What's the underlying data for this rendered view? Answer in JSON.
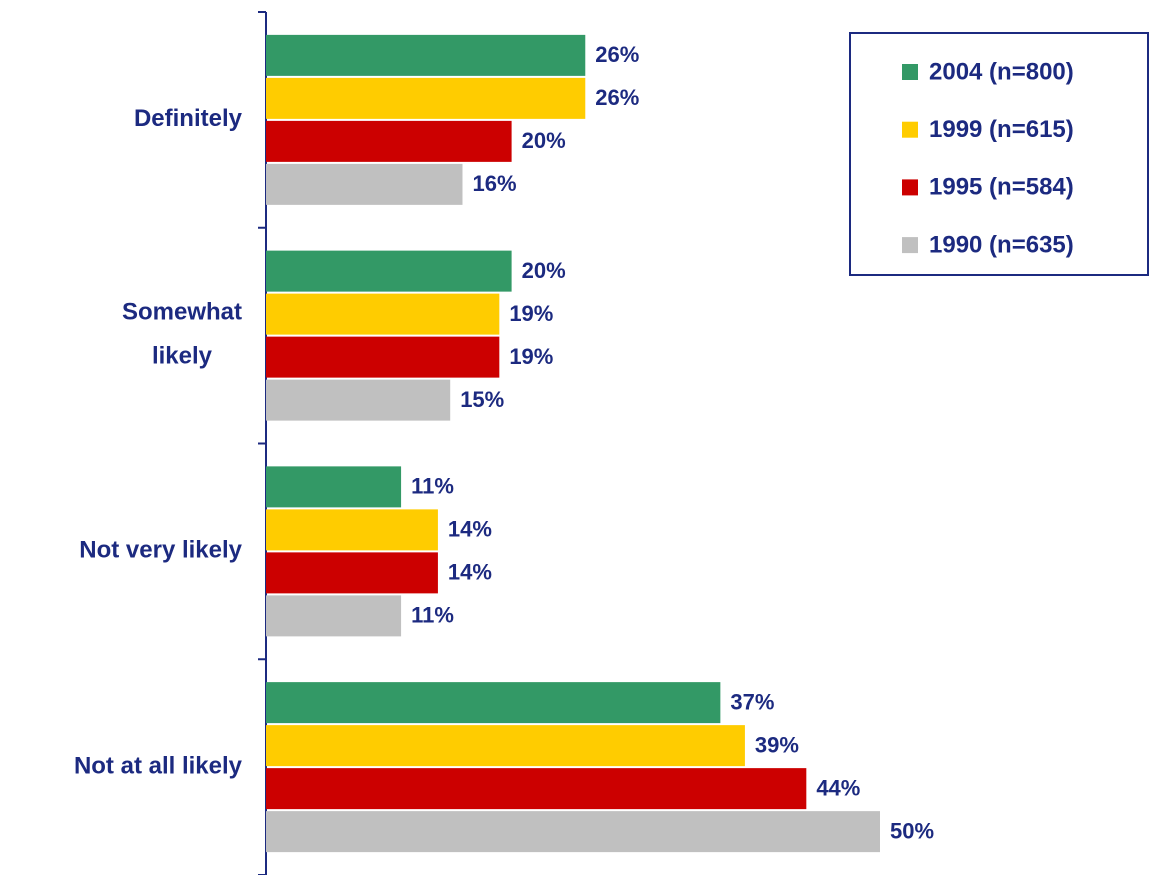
{
  "chart_data": {
    "type": "hbar",
    "categories": [
      "Definitely",
      "Somewhat likely",
      "Not very likely",
      "Not at all likely"
    ],
    "series": [
      {
        "name": "2004 (n=800)",
        "color": "#339966",
        "values": [
          26,
          20,
          11,
          37
        ],
        "value_labels": [
          "26%",
          "20%",
          "11%",
          "37%"
        ]
      },
      {
        "name": "1999 (n=615)",
        "color": "#ffcc00",
        "values": [
          26,
          19,
          14,
          39
        ],
        "value_labels": [
          "26%",
          "19%",
          "14%",
          "39%"
        ]
      },
      {
        "name": "1995 (n=584)",
        "color": "#cc0000",
        "values": [
          20,
          19,
          14,
          44
        ],
        "value_labels": [
          "20%",
          "19%",
          "14%",
          "44%"
        ]
      },
      {
        "name": "1990 (n=635)",
        "color": "#c0c0c0",
        "values": [
          16,
          15,
          11,
          50
        ],
        "value_labels": [
          "16%",
          "15%",
          "11%",
          "50%"
        ]
      }
    ],
    "legend": "top-right"
  }
}
